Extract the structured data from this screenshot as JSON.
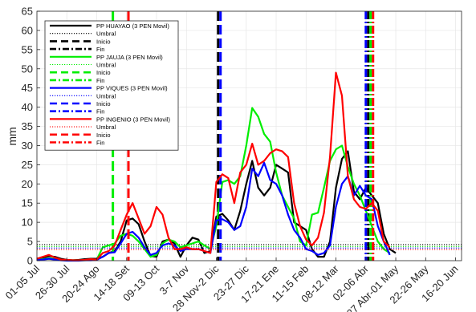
{
  "chart_data": {
    "type": "line",
    "ylabel": "mm",
    "ylim": [
      0,
      65
    ],
    "yticks": [
      0,
      5,
      10,
      15,
      20,
      25,
      30,
      35,
      40,
      45,
      50,
      55,
      60,
      65
    ],
    "x_range": [
      0,
      71
    ],
    "x_ticks": [
      {
        "label": "01-05 Jul",
        "x": 0
      },
      {
        "label": "26-30 Jul",
        "x": 5
      },
      {
        "label": "20-24 Ago",
        "x": 10
      },
      {
        "label": "14-18 Set",
        "x": 15
      },
      {
        "label": "09-13 Oct",
        "x": 20
      },
      {
        "label": "3-7 Nov",
        "x": 25
      },
      {
        "label": "28 Nov-2 Dic",
        "x": 30
      },
      {
        "label": "23-27 Dic",
        "x": 35
      },
      {
        "label": "17-21 Ene",
        "x": 40
      },
      {
        "label": "11-15 Feb",
        "x": 45
      },
      {
        "label": "08-12 Mar",
        "x": 50
      },
      {
        "label": "02-06 Abr",
        "x": 55
      },
      {
        "label": "27 Abr-01 May",
        "x": 60
      },
      {
        "label": "22-26 May",
        "x": 65
      },
      {
        "label": "16-20 Jun",
        "x": 70
      }
    ],
    "grid": true,
    "legend_position": "top-left",
    "series": [
      {
        "name": "PP HUAYAO (3 PEN Movil)",
        "color": "#000000",
        "style": "solid",
        "values": [
          0.5,
          0.8,
          1.2,
          1.0,
          0.5,
          0.2,
          0.1,
          0.2,
          0.4,
          0.5,
          0.5,
          1.0,
          2.0,
          2.5,
          5.0,
          10.5,
          11.0,
          9.5,
          5.0,
          1.2,
          1.0,
          5.0,
          5.5,
          4.5,
          1.0,
          4.0,
          6.0,
          5.5,
          2.0,
          2.5,
          11.5,
          12.2,
          10.5,
          8.0,
          13.0,
          20.0,
          26.0,
          19.0,
          17.0,
          19.0,
          25.0,
          24.0,
          23.0,
          10.0,
          9.0,
          8.0,
          3.0,
          1.0,
          1.0,
          5.0,
          19.0,
          26.5,
          28.5,
          18.0,
          16.0,
          19.0,
          17.0,
          15.0,
          7.0,
          3.0,
          2.0
        ]
      },
      {
        "name": "Umbral",
        "color": "#000000",
        "style": "dotted",
        "threshold": 4.2
      },
      {
        "name": "Inicio",
        "color": "#000000",
        "style": "dash",
        "x": 30.3
      },
      {
        "name": "Fin",
        "color": "#000000",
        "style": "dashdot",
        "x": 55.4
      },
      {
        "name": "PP JAUJA (3 PEN Movil)",
        "color": "#00ee00",
        "style": "solid",
        "values": [
          0.3,
          0.4,
          0.6,
          0.5,
          0.2,
          0.1,
          0.1,
          0.1,
          0.1,
          0.2,
          0.3,
          3.5,
          4.0,
          4.5,
          6.5,
          7.0,
          6.5,
          5.0,
          3.0,
          1.0,
          1.5,
          4.5,
          5.5,
          5.0,
          3.5,
          4.0,
          4.5,
          5.0,
          4.0,
          3.0,
          9.0,
          20.5,
          21.0,
          20.0,
          22.0,
          30.0,
          39.8,
          37.5,
          33.0,
          31.0,
          23.0,
          17.0,
          14.0,
          11.0,
          5.0,
          4.0,
          12.0,
          12.5,
          19.0,
          26.0,
          29.0,
          30.0,
          24.5,
          20.0,
          17.0,
          13.0,
          9.0,
          5.0,
          3.0,
          2.0
        ]
      },
      {
        "name": "Umbral",
        "color": "#00ee00",
        "style": "dotted",
        "threshold": 3.7
      },
      {
        "name": "Inicio",
        "color": "#00ee00",
        "style": "dash",
        "x": 12.7
      },
      {
        "name": "Fin",
        "color": "#00ee00",
        "style": "dashdot",
        "x": 55.8
      },
      {
        "name": "PP VIQUES (3 PEN Movil)",
        "color": "#0000ff",
        "style": "solid",
        "values": [
          0.2,
          0.3,
          0.5,
          0.3,
          0.1,
          0.0,
          0.0,
          0.0,
          0.1,
          0.1,
          0.2,
          1.0,
          2.0,
          2.2,
          4.5,
          7.0,
          7.5,
          6.0,
          3.5,
          1.5,
          2.0,
          4.0,
          4.5,
          4.0,
          2.5,
          3.0,
          3.0,
          3.0,
          2.5,
          2.0,
          10.5,
          10.8,
          10.0,
          8.0,
          9.0,
          14.0,
          24.0,
          22.0,
          25.5,
          21.0,
          20.0,
          17.0,
          12.0,
          8.0,
          6.0,
          3.0,
          2.5,
          1.5,
          2.0,
          4.0,
          14.0,
          20.0,
          22.0,
          17.0,
          19.5,
          17.0,
          16.0,
          9.0,
          5.0,
          1.5
        ]
      },
      {
        "name": "Umbral",
        "color": "#0000ff",
        "style": "dotted",
        "threshold": 3.3
      },
      {
        "name": "Inicio",
        "color": "#0000ff",
        "style": "dash",
        "x": 30.7
      },
      {
        "name": "Fin",
        "color": "#0000ff",
        "style": "dashdot",
        "x": 55.0
      },
      {
        "name": "PP INGENIO (3 PEN Movil)",
        "color": "#ff0000",
        "style": "solid",
        "values": [
          0.5,
          1.0,
          1.5,
          0.8,
          0.3,
          0.2,
          0.1,
          0.1,
          0.2,
          0.4,
          0.3,
          2.0,
          2.5,
          4.0,
          8.0,
          12.0,
          15.0,
          11.0,
          7.0,
          9.0,
          14.0,
          12.0,
          6.0,
          3.0,
          3.0,
          3.5,
          3.0,
          3.0,
          2.5,
          2.0,
          20.5,
          22.5,
          21.5,
          15.0,
          23.0,
          25.0,
          30.5,
          25.0,
          26.0,
          28.0,
          29.0,
          28.5,
          27.0,
          15.0,
          9.0,
          5.5,
          4.0,
          6.0,
          12.5,
          27.0,
          49.0,
          43.0,
          22.0,
          16.0,
          14.0,
          13.5,
          15.0,
          13.0,
          5.0,
          3.5
        ]
      },
      {
        "name": "Umbral",
        "color": "#ff0000",
        "style": "dotted",
        "threshold": 2.9
      },
      {
        "name": "Inicio",
        "color": "#ff0000",
        "style": "dash",
        "x": 15.3
      },
      {
        "name": "Fin",
        "color": "#ff0000",
        "style": "dashdot",
        "x": 56.2
      }
    ]
  }
}
